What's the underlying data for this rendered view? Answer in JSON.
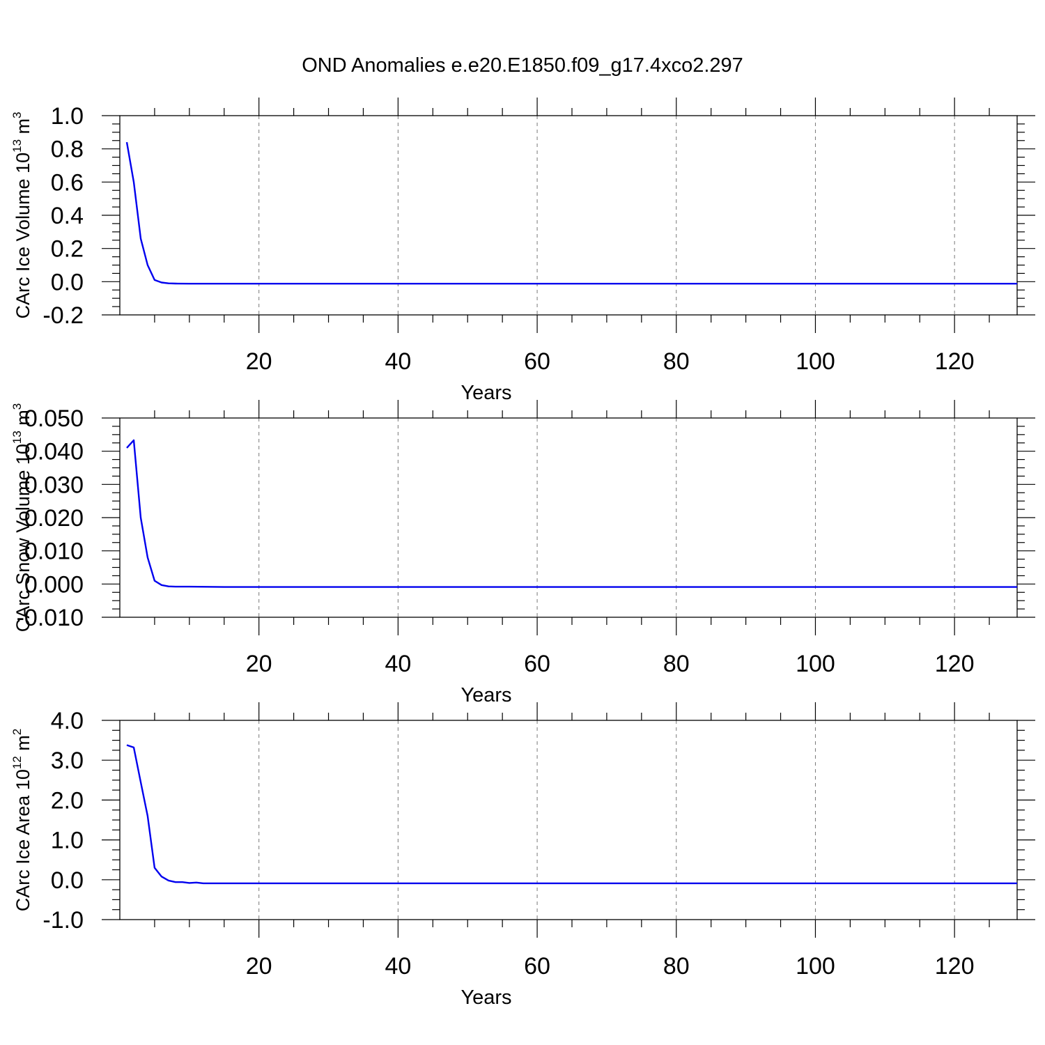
{
  "title": "OND Anomalies e.e20.E1850.f09_g17.4xco2.297",
  "chart_data": [
    {
      "type": "line",
      "ylabel_main": "CArc Ice Volume 10",
      "ylabel_exp": "13",
      "ylabel_tail": " m",
      "ylabel_exp2": "3",
      "xlabel": "Years",
      "xlim": [
        0,
        129
      ],
      "ylim": [
        -0.2,
        1.0
      ],
      "yticks": [
        -0.2,
        0.0,
        0.2,
        0.4,
        0.6,
        0.8,
        1.0
      ],
      "yticklabels": [
        "-0.2",
        "0.0",
        "0.2",
        "0.4",
        "0.6",
        "0.8",
        "1.0"
      ],
      "yminor": 0.05,
      "xticks": [
        20,
        40,
        60,
        80,
        100,
        120
      ],
      "xticklabels": [
        "20",
        "40",
        "60",
        "80",
        "100",
        "120"
      ],
      "xminor": 5,
      "grid_x": true,
      "series": [
        {
          "color": "#0000ee",
          "x": [
            1,
            2,
            3,
            4,
            5,
            6,
            7,
            8,
            10,
            15,
            20,
            129
          ],
          "y": [
            0.84,
            0.6,
            0.26,
            0.1,
            0.01,
            -0.005,
            -0.01,
            -0.011,
            -0.012,
            -0.012,
            -0.012,
            -0.012
          ]
        }
      ]
    },
    {
      "type": "line",
      "ylabel_main": "CArc Snow Volume 10",
      "ylabel_exp": "13",
      "ylabel_tail": " m",
      "ylabel_exp2": "3",
      "xlabel": "Years",
      "xlim": [
        0,
        129
      ],
      "ylim": [
        -0.01,
        0.05
      ],
      "yticks": [
        -0.01,
        0.0,
        0.01,
        0.02,
        0.03,
        0.04,
        0.05
      ],
      "yticklabels": [
        "-0.010",
        "0.000",
        "0.010",
        "0.020",
        "0.030",
        "0.040",
        "0.050"
      ],
      "yminor": 0.0025,
      "xticks": [
        20,
        40,
        60,
        80,
        100,
        120
      ],
      "xticklabels": [
        "20",
        "40",
        "60",
        "80",
        "100",
        "120"
      ],
      "xminor": 5,
      "grid_x": true,
      "series": [
        {
          "color": "#0000ee",
          "x": [
            1,
            2,
            3,
            4,
            5,
            6,
            7,
            8,
            10,
            15,
            20,
            129
          ],
          "y": [
            0.041,
            0.0433,
            0.02,
            0.008,
            0.001,
            -0.0003,
            -0.0007,
            -0.0008,
            -0.0008,
            -0.0009,
            -0.0009,
            -0.0009
          ]
        }
      ]
    },
    {
      "type": "line",
      "ylabel_main": "CArc Ice Area 10",
      "ylabel_exp": "12",
      "ylabel_tail": " m",
      "ylabel_exp2": "2",
      "xlabel": "Years",
      "xlim": [
        0,
        129
      ],
      "ylim": [
        -1.0,
        4.0
      ],
      "yticks": [
        -1.0,
        0.0,
        1.0,
        2.0,
        3.0,
        4.0
      ],
      "yticklabels": [
        "-1.0",
        "0.0",
        "1.0",
        "2.0",
        "3.0",
        "4.0"
      ],
      "yminor": 0.25,
      "xticks": [
        20,
        40,
        60,
        80,
        100,
        120
      ],
      "xticklabels": [
        "20",
        "40",
        "60",
        "80",
        "100",
        "120"
      ],
      "xminor": 5,
      "grid_x": true,
      "series": [
        {
          "color": "#0000ee",
          "x": [
            1,
            2,
            3,
            4,
            5,
            6,
            7,
            8,
            9,
            10,
            11,
            12,
            15,
            20,
            129
          ],
          "y": [
            3.38,
            3.32,
            2.45,
            1.6,
            0.3,
            0.08,
            -0.02,
            -0.06,
            -0.06,
            -0.08,
            -0.07,
            -0.09,
            -0.09,
            -0.09,
            -0.09
          ]
        }
      ]
    }
  ]
}
